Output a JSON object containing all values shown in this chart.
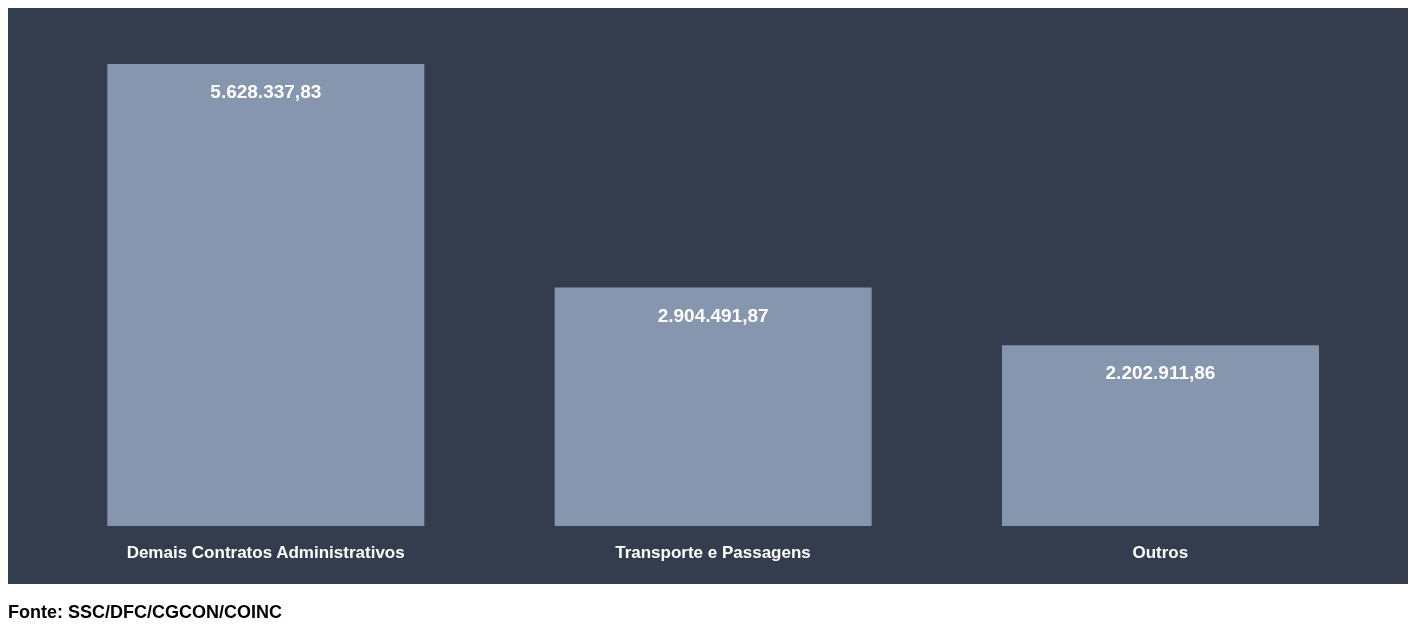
{
  "chart_data": {
    "type": "bar",
    "categories": [
      "Demais Contratos Administrativos",
      "Transporte e Passagens",
      "Outros"
    ],
    "values": [
      5628337.83,
      2904491.87,
      2202911.86
    ],
    "value_labels": [
      "5.628.337,83",
      "2.904.491,87",
      "2.202.911,86"
    ],
    "color": "#8596ae",
    "grid": false,
    "legend": false,
    "annotations": [
      "Fonte: SSC/DFC/CGCON/COINC"
    ]
  }
}
